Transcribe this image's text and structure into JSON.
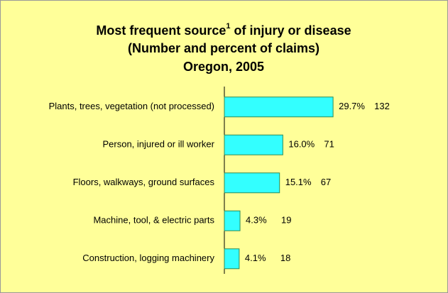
{
  "chart_data": {
    "type": "bar",
    "title": {
      "text1": "Most frequent source",
      "footnote_mark": "1",
      "text2": " of injury or disease"
    },
    "subtitle": [
      "(Number and percent of claims)",
      "Oregon, 2005"
    ],
    "categories": [
      "Plants, trees, vegetation (not processed)",
      "Person, injured or ill worker",
      "Floors, walkways, ground surfaces",
      "Machine, tool, & electric parts",
      "Construction, logging machinery"
    ],
    "values": [
      132,
      71,
      67,
      19,
      18
    ],
    "percents": [
      29.7,
      16.0,
      15.1,
      4.3,
      4.1
    ],
    "percent_labels": [
      "29.7%",
      "16.0%",
      "15.1%",
      "4.3%",
      "4.1%"
    ],
    "color": "#33ffff",
    "xlim": [
      0,
      150
    ]
  }
}
